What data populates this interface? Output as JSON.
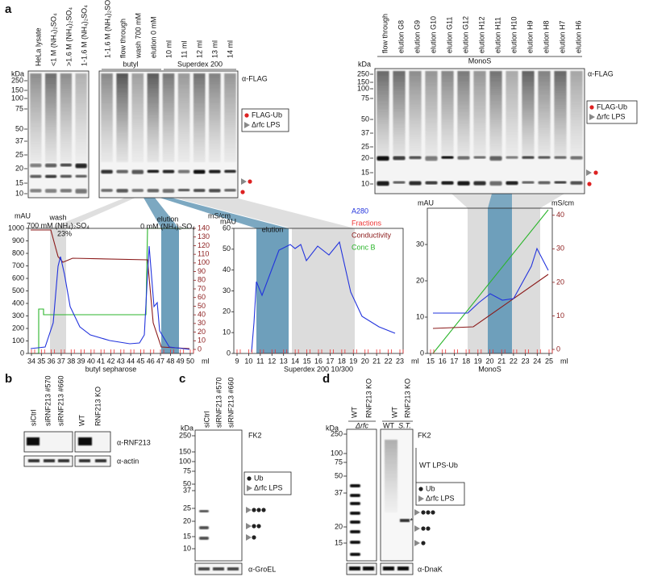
{
  "panel_a": {
    "letter": "a",
    "blot1": {
      "lane_labels": [
        "HeLa lysate",
        "<1 M (NH₄)₂SO₄",
        ">1.6 M (NH₄)₂SO₄",
        "1-1.6 M (NH₄)₂SO₄"
      ],
      "kda_label": "kDa",
      "markers": [
        "250",
        "150",
        "100",
        "75",
        "50",
        "37",
        "25",
        "20",
        "15",
        "10"
      ]
    },
    "blot2": {
      "lane_labels": [
        "1-1.6 M (NH₄)₂SO₄",
        "flow through",
        "wash 700 mM",
        "elution 0 mM",
        "10 ml",
        "11 ml",
        "12 ml",
        "13 ml",
        "14 ml"
      ],
      "group_labels": [
        "butyl",
        "Superdex 200"
      ],
      "antibody": "α-FLAG",
      "legend": [
        "FLAG-Ub",
        "Δrfc LPS"
      ]
    },
    "blot3": {
      "lane_labels": [
        "flow through",
        "elution G8",
        "elution G9",
        "elution G10",
        "elution G11",
        "elution G12",
        "elution H12",
        "elution H11",
        "elution H10",
        "elution H9",
        "elution H8",
        "elution H7",
        "elution H6"
      ],
      "group_label": "MonoS",
      "kda_label": "kDa",
      "markers": [
        "250",
        "150",
        "100",
        "75",
        "50",
        "37",
        "25",
        "20",
        "15",
        "10"
      ],
      "antibody": "α-FLAG",
      "legend": [
        "FLAG-Ub",
        "Δrfc LPS"
      ]
    },
    "chrom1": {
      "y_label": "mAU",
      "y2_label": "mS/cm",
      "yticks": [
        "0",
        "100",
        "200",
        "300",
        "400",
        "500",
        "600",
        "700",
        "800",
        "900",
        "1000"
      ],
      "y2ticks": [
        "0",
        "10",
        "20",
        "30",
        "40",
        "50",
        "60",
        "70",
        "80",
        "90",
        "100",
        "110",
        "120",
        "130",
        "140"
      ],
      "xticks": [
        "34",
        "35",
        "36",
        "37",
        "38",
        "39",
        "40",
        "41",
        "42",
        "43",
        "44",
        "45",
        "46",
        "47",
        "48",
        "49",
        "50"
      ],
      "x_unit": "ml",
      "x_label": "butyl sepharose",
      "annotations": [
        "wash",
        "700 mM (NH₄)₂SO₄",
        "23%",
        "elution",
        "0 mM (NH₄)₂SO₄"
      ]
    },
    "chrom2": {
      "y_label": "mAU",
      "yticks": [
        "0",
        "10",
        "20",
        "30",
        "40",
        "50",
        "60"
      ],
      "xticks": [
        "9",
        "10",
        "11",
        "12",
        "13",
        "14",
        "15",
        "16",
        "17",
        "18",
        "19",
        "20",
        "21",
        "22",
        "23"
      ],
      "x_unit": "ml",
      "x_label": "Superdex 200 10/300",
      "annotations": [
        "elution"
      ],
      "legend": [
        "A280",
        "Fractions",
        "Conductivity",
        "Conc B"
      ]
    },
    "chrom3": {
      "y_label": "mAU",
      "y2_label": "mS/cm",
      "yticks": [
        "0",
        "10",
        "20",
        "30"
      ],
      "y2ticks": [
        "0",
        "10",
        "20",
        "30",
        "40"
      ],
      "xticks": [
        "15",
        "16",
        "17",
        "18",
        "19",
        "20",
        "21",
        "22",
        "23",
        "24",
        "25"
      ],
      "x_unit": "ml",
      "x_label": "MonoS"
    }
  },
  "panel_b": {
    "letter": "b",
    "lane_labels": [
      "siCtrl",
      "siRNF213 #570",
      "siRNF213 #660",
      "WT",
      "RNF213 KO"
    ],
    "antibodies": [
      "α-RNF213",
      "α-actin"
    ]
  },
  "panel_c": {
    "letter": "c",
    "lane_labels": [
      "siCtrl",
      "siRNF213 #570",
      "siRNF213 #660"
    ],
    "kda_label": "kDa",
    "markers": [
      "250",
      "150",
      "100",
      "75",
      "50",
      "37",
      "25",
      "20",
      "15",
      "10"
    ],
    "antibody": "FK2",
    "legend": [
      "Ub",
      "Δrfc LPS"
    ],
    "loading": "α-GroEL"
  },
  "panel_d": {
    "letter": "d",
    "lane_labels": [
      "WT",
      "RNF213 KO",
      "WT",
      "RNF213 KO"
    ],
    "sublabels": [
      "Δrfc",
      "WT",
      "S.T."
    ],
    "kda_label": "kDa",
    "markers": [
      "250",
      "100",
      "75",
      "50",
      "37",
      "20",
      "15"
    ],
    "antibody": "FK2",
    "bracket": "WT LPS-Ub",
    "star": "*",
    "legend": [
      "Ub",
      "Δrfc LPS"
    ],
    "loading": "α-DnaK"
  }
}
